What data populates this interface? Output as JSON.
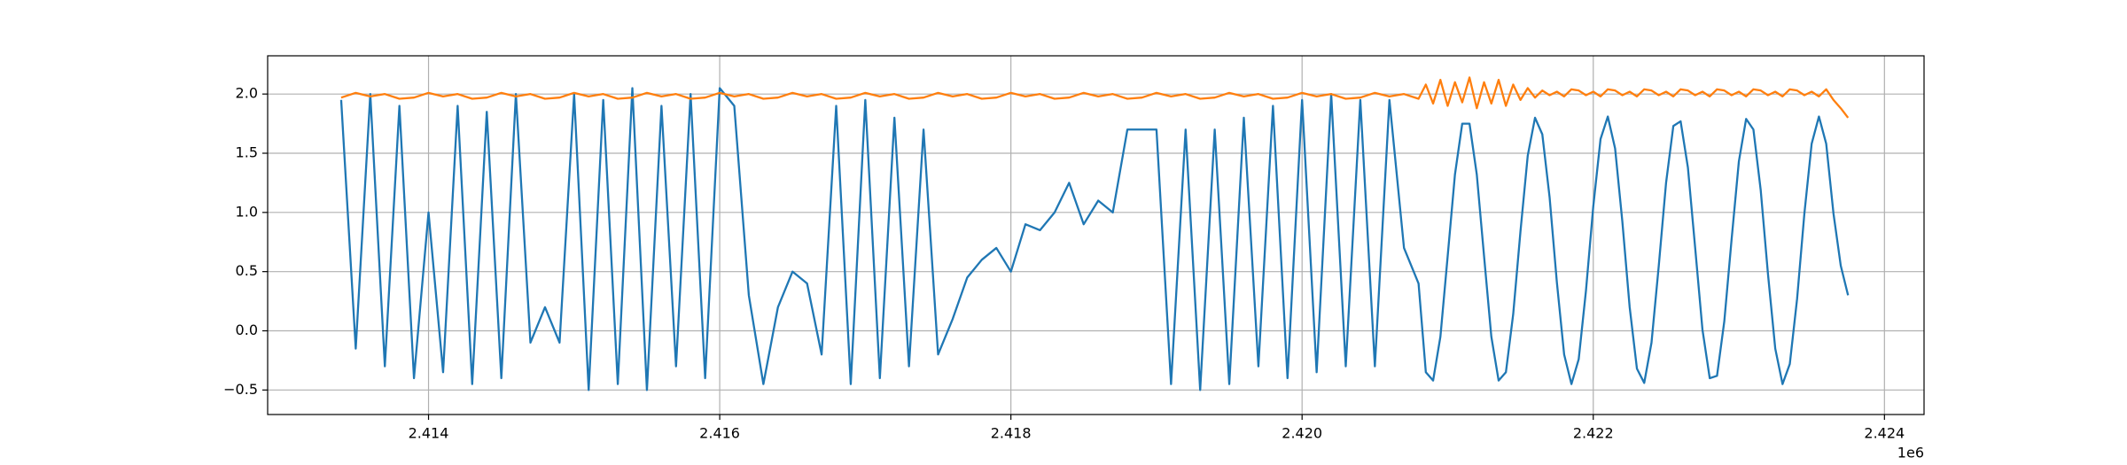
{
  "chart_data": {
    "type": "line",
    "x": [
      2413400,
      2413500,
      2413600,
      2413700,
      2413800,
      2413900,
      2414000,
      2414100,
      2414200,
      2414300,
      2414400,
      2414500,
      2414600,
      2414700,
      2414800,
      2414900,
      2415000,
      2415100,
      2415200,
      2415300,
      2415400,
      2415500,
      2415600,
      2415700,
      2415800,
      2415900,
      2416000,
      2416100,
      2416200,
      2416300,
      2416400,
      2416500,
      2416600,
      2416700,
      2416800,
      2416900,
      2417000,
      2417100,
      2417200,
      2417300,
      2417400,
      2417500,
      2417600,
      2417700,
      2417800,
      2417900,
      2418000,
      2418100,
      2418200,
      2418300,
      2418400,
      2418500,
      2418600,
      2418700,
      2418800,
      2418900,
      2419000,
      2419100,
      2419200,
      2419300,
      2419400,
      2419500,
      2419600,
      2419700,
      2419800,
      2419900,
      2420000,
      2420100,
      2420200,
      2420300,
      2420400,
      2420500,
      2420600,
      2420700,
      2420800,
      2420850,
      2420900,
      2420950,
      2421000,
      2421050,
      2421100,
      2421150,
      2421200,
      2421250,
      2421300,
      2421350,
      2421400,
      2421450,
      2421500,
      2421550,
      2421600,
      2421650,
      2421700,
      2421750,
      2421800,
      2421850,
      2421900,
      2421950,
      2422000,
      2422050,
      2422100,
      2422150,
      2422200,
      2422250,
      2422300,
      2422350,
      2422400,
      2422450,
      2422500,
      2422550,
      2422600,
      2422650,
      2422700,
      2422750,
      2422800,
      2422850,
      2422900,
      2422950,
      2423000,
      2423050,
      2423100,
      2423150,
      2423200,
      2423250,
      2423300,
      2423350,
      2423400,
      2423450,
      2423500,
      2423550,
      2423600,
      2423650,
      2423700,
      2423750
    ],
    "series": [
      {
        "color": "#1f77b4",
        "values": [
          1.95,
          -0.15,
          2.0,
          -0.3,
          1.9,
          -0.4,
          1.0,
          -0.35,
          1.9,
          -0.45,
          1.85,
          -0.4,
          2.0,
          -0.1,
          0.2,
          -0.1,
          2.0,
          -0.5,
          1.95,
          -0.45,
          2.05,
          -0.5,
          1.9,
          -0.3,
          2.0,
          -0.4,
          2.05,
          1.9,
          0.3,
          -0.45,
          0.2,
          0.5,
          0.4,
          -0.2,
          1.9,
          -0.45,
          1.95,
          -0.4,
          1.8,
          -0.3,
          1.7,
          -0.2,
          0.1,
          0.45,
          0.6,
          0.7,
          0.5,
          0.9,
          0.85,
          1.0,
          1.25,
          0.9,
          1.1,
          1.0,
          1.7,
          1.7,
          1.7,
          -0.45,
          1.7,
          -0.5,
          1.7,
          -0.45,
          1.8,
          -0.3,
          1.9,
          -0.4,
          1.95,
          -0.35,
          2.0,
          -0.3,
          1.95,
          -0.3,
          1.95,
          0.7,
          0.4,
          -0.35,
          -0.42,
          -0.05,
          0.63,
          1.32,
          1.75,
          1.75,
          1.32,
          0.63,
          -0.05,
          -0.42,
          -0.35,
          0.14,
          0.84,
          1.48,
          1.8,
          1.66,
          1.13,
          0.41,
          -0.2,
          -0.45,
          -0.24,
          0.34,
          1.05,
          1.62,
          1.81,
          1.54,
          0.92,
          0.2,
          -0.32,
          -0.44,
          -0.1,
          0.55,
          1.25,
          1.73,
          1.77,
          1.38,
          0.7,
          0.01,
          -0.4,
          -0.38,
          0.08,
          0.77,
          1.43,
          1.79,
          1.7,
          1.19,
          0.48,
          -0.15,
          -0.45,
          -0.28,
          0.27,
          0.99,
          1.58,
          1.81,
          1.58,
          0.99,
          0.55,
          0.3
        ]
      },
      {
        "color": "#ff7f0e",
        "values": [
          1.97,
          2.01,
          1.98,
          2.0,
          1.96,
          1.97,
          2.01,
          1.98,
          2.0,
          1.96,
          1.97,
          2.01,
          1.98,
          2.0,
          1.96,
          1.97,
          2.01,
          1.98,
          2.0,
          1.96,
          1.97,
          2.01,
          1.98,
          2.0,
          1.96,
          1.97,
          2.01,
          1.98,
          2.0,
          1.96,
          1.97,
          2.01,
          1.98,
          2.0,
          1.96,
          1.97,
          2.01,
          1.98,
          2.0,
          1.96,
          1.97,
          2.01,
          1.98,
          2.0,
          1.96,
          1.97,
          2.01,
          1.98,
          2.0,
          1.96,
          1.97,
          2.01,
          1.98,
          2.0,
          1.96,
          1.97,
          2.01,
          1.98,
          2.0,
          1.96,
          1.97,
          2.01,
          1.98,
          2.0,
          1.96,
          1.97,
          2.01,
          1.98,
          2.0,
          1.96,
          1.97,
          2.01,
          1.98,
          2.0,
          1.96,
          2.08,
          1.92,
          2.12,
          1.9,
          2.1,
          1.93,
          2.14,
          1.88,
          2.1,
          1.92,
          2.12,
          1.9,
          2.08,
          1.95,
          2.05,
          1.97,
          2.03,
          1.99,
          2.02,
          1.98,
          2.04,
          2.03,
          1.99,
          2.02,
          1.98,
          2.04,
          2.03,
          1.99,
          2.02,
          1.98,
          2.04,
          2.03,
          1.99,
          2.02,
          1.98,
          2.04,
          2.03,
          1.99,
          2.02,
          1.98,
          2.04,
          2.03,
          1.99,
          2.02,
          1.98,
          2.04,
          2.03,
          1.99,
          2.02,
          1.98,
          2.04,
          2.03,
          1.99,
          2.02,
          1.98,
          2.04,
          1.95,
          1.88,
          1.8
        ]
      }
    ],
    "xlim": [
      2412895,
      2424272
    ],
    "xticks": [
      {
        "value": 2414000,
        "label": "2.414"
      },
      {
        "value": 2416000,
        "label": "2.416"
      },
      {
        "value": 2418000,
        "label": "2.418"
      },
      {
        "value": 2420000,
        "label": "2.420"
      },
      {
        "value": 2422000,
        "label": "2.422"
      },
      {
        "value": 2424000,
        "label": "2.424"
      }
    ],
    "x_offset_label": "1e6",
    "ylim": [
      -0.707,
      2.323
    ],
    "yticks": [
      {
        "value": -0.5,
        "label": "−0.5"
      },
      {
        "value": 0,
        "label": "0.0"
      },
      0.5,
      {
        "value": 1,
        "label": "1.0"
      },
      1.5,
      {
        "value": 2,
        "label": "2.0"
      }
    ],
    "grid": true
  }
}
